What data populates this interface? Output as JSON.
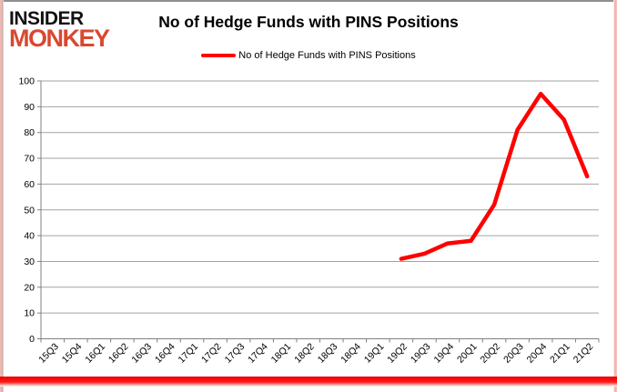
{
  "logo": {
    "line1": "INSIDER",
    "line2": "MONKEY",
    "line1_color": "#121212",
    "line2_color": "#d9482f"
  },
  "header": {
    "title": "No of Hedge Funds with PINS Positions"
  },
  "legend": {
    "label": "No of Hedge Funds with PINS Positions",
    "line_color": "#ff0000"
  },
  "chart_data": {
    "type": "line",
    "title": "No of Hedge Funds with PINS Positions",
    "categories": [
      "15Q3",
      "15Q4",
      "16Q1",
      "16Q2",
      "16Q3",
      "16Q4",
      "17Q1",
      "17Q2",
      "17Q3",
      "17Q4",
      "18Q1",
      "18Q2",
      "18Q3",
      "18Q4",
      "19Q1",
      "19Q2",
      "19Q3",
      "19Q4",
      "20Q1",
      "20Q2",
      "20Q3",
      "20Q4",
      "21Q1",
      "21Q2"
    ],
    "series": [
      {
        "name": "No of Hedge Funds with PINS Positions",
        "color": "#ff0000",
        "values": [
          null,
          null,
          null,
          null,
          null,
          null,
          null,
          null,
          null,
          null,
          null,
          null,
          null,
          null,
          null,
          31,
          33,
          37,
          38,
          52,
          81,
          95,
          85,
          63
        ]
      }
    ],
    "xlabel": "",
    "ylabel": "",
    "ylim": [
      0,
      100
    ],
    "ytick_step": 10,
    "grid": true,
    "legend_position": "top",
    "axis_color": "#808080",
    "gridline_color": "#a3a3a3"
  }
}
